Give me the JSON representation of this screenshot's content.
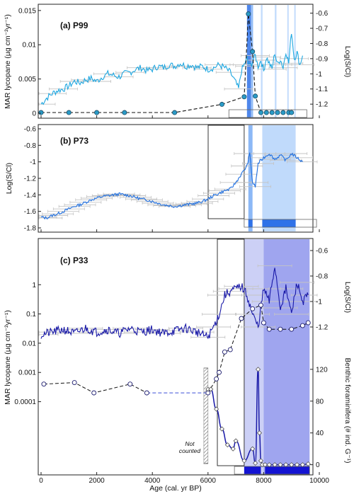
{
  "colors": {
    "p99_line": "#1ea7e1",
    "log_line": "#1f6fe0",
    "p33_lyc": "#1a1aa8",
    "dashed_marker_p99": "#2a9bc7",
    "error_bar": "#c4c4c4",
    "shade_light": "#b9d6fb",
    "shade_mid": "#7fb0f5",
    "shade_deep": "#2f72e8",
    "p33_shade_light": "#c9cdf6",
    "p33_shade_mid": "#9aa0ee",
    "p33_band_dark": "#1414d2"
  },
  "chart_data": [
    {
      "panel": "(a)",
      "name": "P99",
      "type": "line",
      "ylabel_left": "MAR lycopane (µg cm⁻²yr⁻¹)",
      "ylabel_right": "Log(S/Cl)",
      "left_ticks": [
        "0.015",
        "0.01",
        "0.005",
        "0"
      ],
      "left_lim": [
        0,
        0.0155
      ],
      "right_ticks": [
        "-0.6",
        "-0.7",
        "-0.8",
        "-0.9",
        "-1",
        "-1.1",
        "-1.2"
      ],
      "right_lim": [
        -1.26,
        -0.56
      ],
      "xlim": [
        0,
        10000
      ],
      "series": [
        {
          "role": "log_sc",
          "x": [
            0,
            200,
            400,
            600,
            800,
            1000,
            1200,
            1400,
            1600,
            1800,
            2000,
            2200,
            2400,
            2600,
            2800,
            3000,
            3200,
            3400,
            3600,
            3800,
            4000,
            4200,
            4400,
            4600,
            4800,
            5000,
            5200,
            5400,
            5600,
            5800,
            6000,
            6200,
            6400,
            6600,
            6800,
            7000,
            7100,
            7200,
            7300,
            7400,
            7500,
            7600,
            7700,
            7800,
            7900,
            8000,
            8100,
            8200,
            8300,
            8400,
            8500,
            8600,
            8700,
            8800,
            8900,
            9000,
            9100,
            9200,
            9300,
            9400
          ],
          "y": [
            -1.2,
            -1.16,
            -1.13,
            -1.11,
            -1.1,
            -1.08,
            -1.05,
            -1.06,
            -1.04,
            -1.03,
            -1.05,
            -1.02,
            -1.0,
            -1.01,
            -1.02,
            -1.0,
            -0.99,
            -0.97,
            -0.96,
            -0.98,
            -0.97,
            -0.95,
            -0.96,
            -0.94,
            -0.95,
            -0.93,
            -0.95,
            -0.94,
            -0.96,
            -0.95,
            -0.97,
            -0.96,
            -0.94,
            -0.96,
            -0.99,
            -1.06,
            -1.1,
            -0.98,
            -0.94,
            -0.9,
            -0.95,
            -0.92,
            -0.88,
            -0.95,
            -0.91,
            -0.98,
            -0.89,
            -0.93,
            -0.97,
            -0.86,
            -0.94,
            -0.9,
            -0.96,
            -0.85,
            -0.93,
            -0.72,
            -0.9,
            -0.86,
            -0.94,
            -0.88
          ]
        },
        {
          "role": "mar_lycopane",
          "x": [
            0,
            1000,
            2000,
            3000,
            4800,
            6500,
            7300,
            7450,
            7600,
            7700,
            7900,
            8100,
            8300,
            8500,
            8700,
            8900,
            9000
          ],
          "y": [
            0.0001,
            0.0001,
            0.0001,
            0.0001,
            0.0001,
            0.0013,
            0.0024,
            0.0145,
            0.009,
            0.0025,
            0.0001,
            0.0001,
            0.0001,
            0.0001,
            0.0001,
            0.0001,
            0.0001
          ]
        }
      ],
      "shading": [
        {
          "x0": 7400,
          "x1": 7550,
          "tone": "deep"
        },
        {
          "x0": 7560,
          "x1": 7620,
          "tone": "mid"
        },
        {
          "x0": 7900,
          "x1": 7960,
          "tone": "light"
        },
        {
          "x0": 8400,
          "x1": 8460,
          "tone": "light"
        },
        {
          "x0": 8850,
          "x1": 8900,
          "tone": "light"
        },
        {
          "x0": 9100,
          "x1": 9150,
          "tone": "light"
        }
      ]
    },
    {
      "panel": "(b)",
      "name": "P73",
      "type": "line",
      "ylabel_left": "Log(S/Cl)",
      "left_ticks": [
        "-0.6",
        "-0.8",
        "-1",
        "-1.2",
        "-1.4",
        "-1.6",
        "-1.8"
      ],
      "left_lim": [
        -1.8,
        -0.6
      ],
      "xlim": [
        0,
        10000
      ],
      "series": [
        {
          "role": "log_sc",
          "x": [
            0,
            200,
            400,
            600,
            800,
            1000,
            1200,
            1400,
            1600,
            1800,
            2000,
            2200,
            2400,
            2600,
            2800,
            3000,
            3200,
            3400,
            3600,
            3800,
            4000,
            4200,
            4400,
            4600,
            4800,
            5000,
            5200,
            5400,
            5600,
            5800,
            6000,
            6200,
            6400,
            6600,
            6800,
            7000,
            7200,
            7400,
            7500,
            7600,
            7700,
            7800,
            8000,
            8200,
            8400,
            8600,
            8800,
            9000,
            9200,
            9400
          ],
          "y": [
            -1.67,
            -1.68,
            -1.65,
            -1.63,
            -1.6,
            -1.57,
            -1.54,
            -1.52,
            -1.49,
            -1.46,
            -1.44,
            -1.42,
            -1.41,
            -1.4,
            -1.39,
            -1.4,
            -1.41,
            -1.43,
            -1.45,
            -1.46,
            -1.48,
            -1.5,
            -1.52,
            -1.53,
            -1.54,
            -1.53,
            -1.52,
            -1.51,
            -1.5,
            -1.48,
            -1.45,
            -1.41,
            -1.38,
            -1.35,
            -1.33,
            -1.25,
            -1.15,
            -1.05,
            -0.9,
            -1.25,
            -1.3,
            -1.02,
            -0.95,
            -0.9,
            -0.97,
            -0.92,
            -0.98,
            -0.9,
            -0.95,
            -1.0
          ]
        }
      ],
      "shading": [
        {
          "x0": 7450,
          "x1": 7600,
          "tone": "mid"
        },
        {
          "x0": 7950,
          "x1": 9150,
          "tone": "light"
        }
      ]
    },
    {
      "panel": "(c)",
      "name": "P33",
      "type": "line",
      "ylabel_left": "MAR lycopane (µg cm⁻²yr⁻¹)",
      "ylabel_right_top": "Log(S/Cl)",
      "ylabel_right_bottom": "Benthic foraminifera (# ind. G⁻¹)",
      "left_ticks": [
        "1",
        "0.1",
        "0.01",
        "0.001",
        "0.0001"
      ],
      "left_scale": "log",
      "left_lim": [
        5e-05,
        1.5
      ],
      "right_top_ticks": [
        "-0.6",
        "-0.8",
        "-1",
        "-1.2"
      ],
      "right_top_lim": [
        -1.3,
        -0.55
      ],
      "right_bottom_ticks": [
        "120",
        "80",
        "40",
        "0"
      ],
      "right_bottom_lim": [
        -3,
        135
      ],
      "x_ticks": [
        "0",
        "2000",
        "4000",
        "6000",
        "8000",
        "10000"
      ],
      "xlim": [
        0,
        10000
      ],
      "xlabel": "Age (cal. yr BP)",
      "annotation": "Not counted",
      "series": [
        {
          "role": "log_sc",
          "x": [
            0,
            400,
            800,
            1200,
            1600,
            2000,
            2400,
            2800,
            3200,
            3600,
            4000,
            4400,
            4800,
            5200,
            5600,
            6000,
            6200,
            6400,
            6600,
            6800,
            7000,
            7200,
            7400,
            7600,
            7800,
            8000,
            8200,
            8400,
            8600,
            8800,
            9000,
            9200,
            9400,
            9600
          ],
          "y": [
            -1.26,
            -1.24,
            -1.22,
            -1.25,
            -1.21,
            -1.24,
            -1.22,
            -1.25,
            -1.21,
            -1.24,
            -1.22,
            -1.25,
            -1.23,
            -1.21,
            -1.24,
            -1.28,
            -1.2,
            -1.1,
            -0.95,
            -0.92,
            -0.9,
            -0.88,
            -0.95,
            -1.1,
            -1.2,
            -0.9,
            -1.0,
            -0.72,
            -1.05,
            -0.9,
            -1.1,
            -0.85,
            -1.0,
            -0.95
          ]
        },
        {
          "role": "mar_lycopane",
          "x": [
            100,
            1200,
            1900,
            3200,
            3800,
            6000,
            6300,
            6400,
            6600,
            6800,
            7200,
            7600,
            7900,
            8000,
            8200,
            8600,
            9000,
            9400,
            9600
          ],
          "y": [
            0.0004,
            0.00045,
            0.0002,
            0.0004,
            0.0002,
            0.0002,
            0.0006,
            0.001,
            0.005,
            0.006,
            0.07,
            0.15,
            0.2,
            0.05,
            0.03,
            0.03,
            0.03,
            0.04,
            0.05
          ],
          "bridge_x": [
            3800,
            6000
          ],
          "bridge_y": [
            0.0002,
            0.0002
          ]
        },
        {
          "role": "benthic_foraminifera",
          "x": [
            6000,
            6100,
            6300,
            6500,
            6700,
            6900,
            7000,
            7300,
            7600,
            7700,
            7800,
            7850,
            7900,
            7950,
            8050,
            8200,
            8400,
            8600,
            8800,
            9000,
            9200,
            9400,
            9600
          ],
          "y": [
            95,
            95,
            70,
            45,
            25,
            20,
            30,
            5,
            20,
            2,
            120,
            40,
            5,
            0,
            0,
            0,
            0,
            0,
            0,
            0,
            0,
            0,
            1
          ]
        }
      ],
      "shading": [
        {
          "x0": 7300,
          "x1": 8000,
          "tone": "p33_light"
        },
        {
          "x0": 8000,
          "x1": 9650,
          "tone": "p33_mid"
        }
      ]
    }
  ]
}
